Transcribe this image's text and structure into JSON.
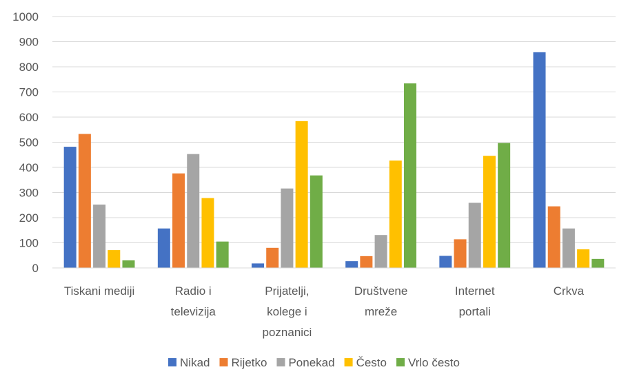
{
  "chart_data": {
    "type": "bar",
    "categories": [
      [
        "Tiskani mediji"
      ],
      [
        "Radio i",
        "televizija"
      ],
      [
        "Prijatelji,",
        "kolege i",
        "poznanici"
      ],
      [
        "Društvene",
        "mreže"
      ],
      [
        "Internet",
        "portali"
      ],
      [
        "Crkva"
      ]
    ],
    "series": [
      {
        "name": "Nikad",
        "color": "#4472C4",
        "values": [
          482,
          157,
          18,
          27,
          48,
          858
        ]
      },
      {
        "name": "Rijetko",
        "color": "#ED7D31",
        "values": [
          533,
          376,
          80,
          47,
          114,
          245
        ]
      },
      {
        "name": "Ponekad",
        "color": "#A5A5A5",
        "values": [
          252,
          453,
          316,
          131,
          259,
          157
        ]
      },
      {
        "name": "Često",
        "color": "#FFC000",
        "values": [
          71,
          278,
          584,
          427,
          446,
          74
        ]
      },
      {
        "name": "Vrlo često",
        "color": "#70AD47",
        "values": [
          30,
          105,
          368,
          734,
          497,
          36
        ]
      }
    ],
    "yticks": [
      "0",
      "100",
      "200",
      "300",
      "400",
      "500",
      "600",
      "700",
      "800",
      "900",
      "1000"
    ],
    "ylim": [
      0,
      1000
    ],
    "grid": true,
    "legend_position": "bottom"
  }
}
